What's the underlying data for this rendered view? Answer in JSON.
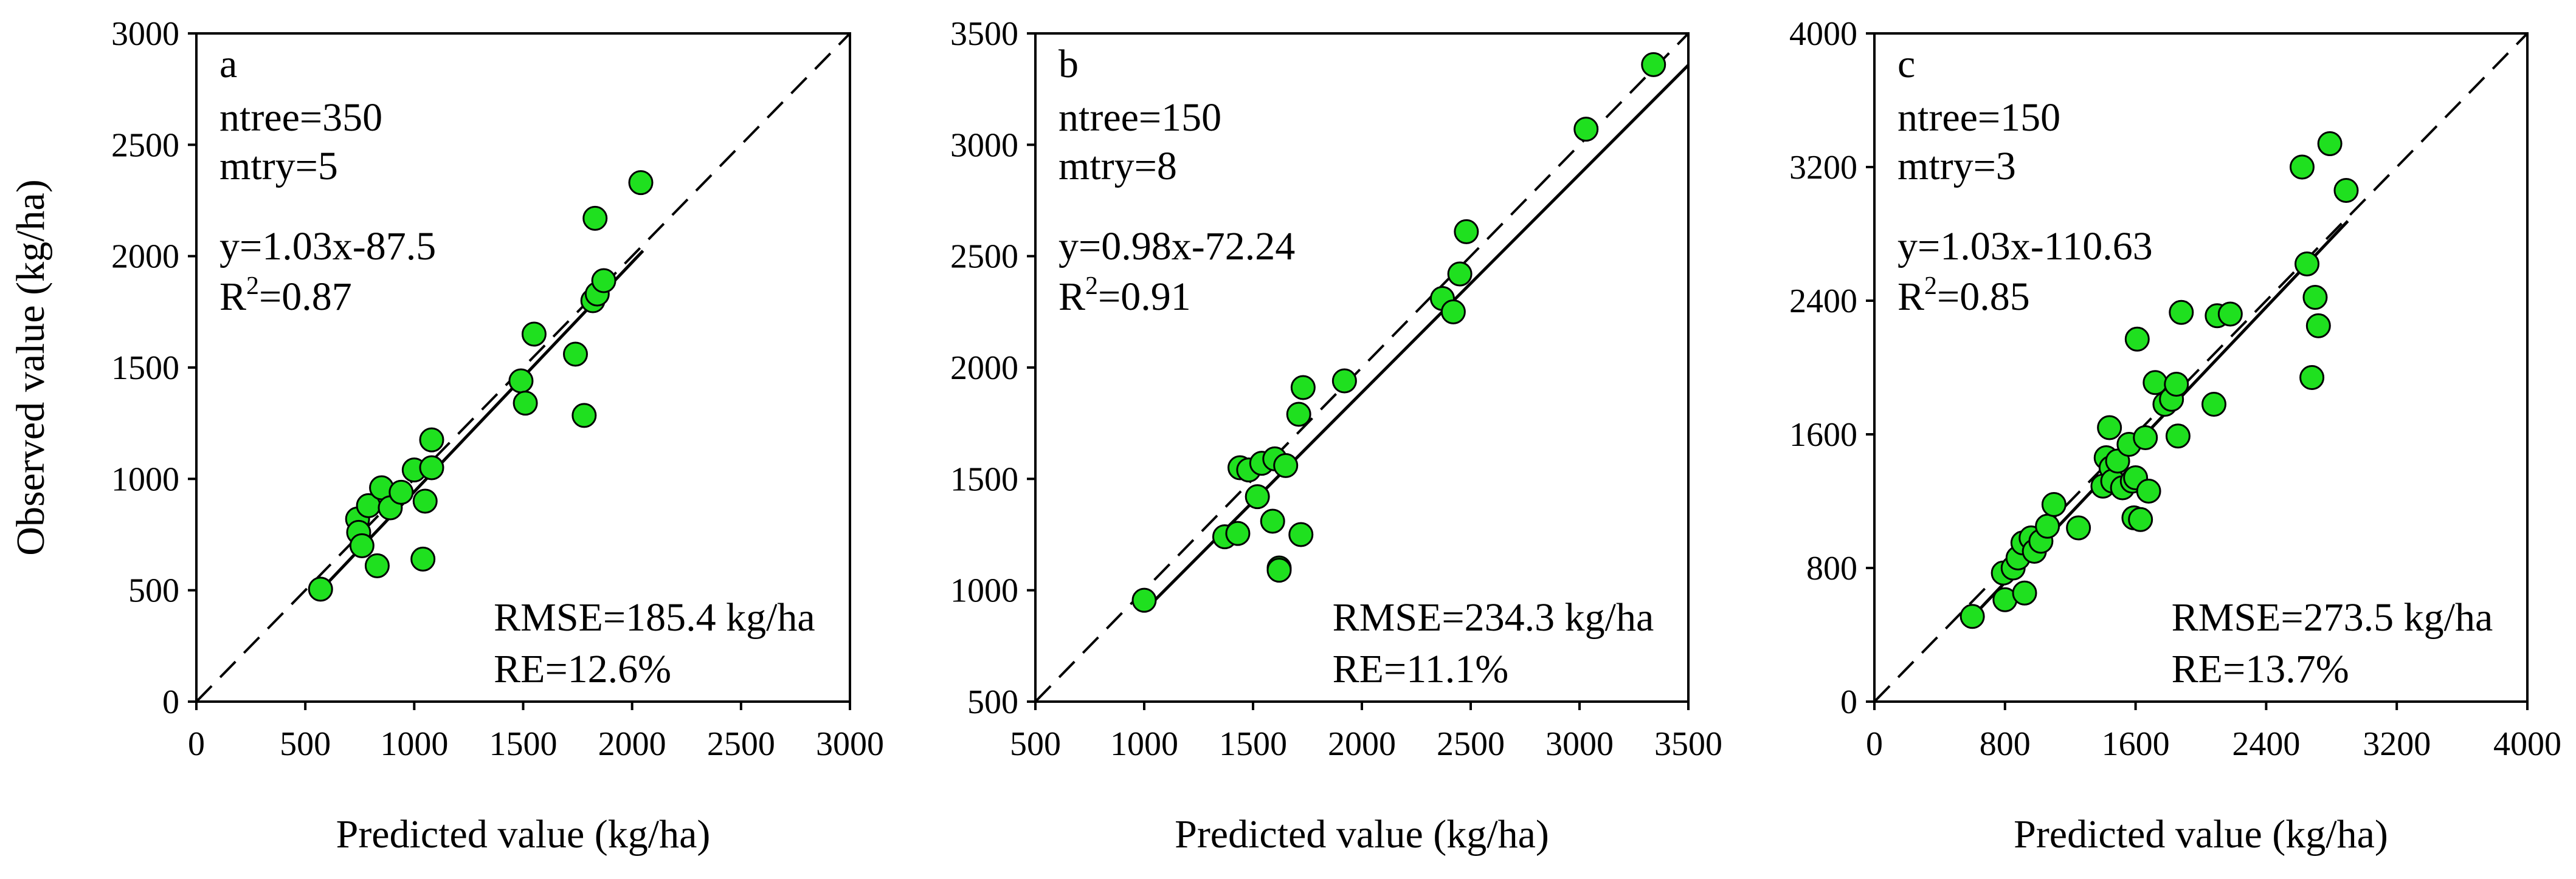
{
  "chart_data": [
    {
      "type": "scatter",
      "panel": "a",
      "params": [
        "ntree=350",
        "mtry=5"
      ],
      "equation": "y=1.03x-87.5",
      "r2_prefix": "R",
      "r2_sup": "2",
      "r2_value": "=0.87",
      "rmse": "RMSE=185.4 kg/ha",
      "re": "RE=12.6%",
      "slope": 1.03,
      "intercept": -87.5,
      "fit_range": [
        560,
        2050
      ],
      "xlabel": "Predicted value (kg/ha)",
      "ylabel": "Observed value (kg/ha)",
      "xlim": [
        0,
        3000
      ],
      "ylim": [
        0,
        3000
      ],
      "xticks": [
        0,
        500,
        1000,
        1500,
        2000,
        2500,
        3000
      ],
      "yticks": [
        0,
        500,
        1000,
        1500,
        2000,
        2500,
        3000
      ],
      "x": [
        570,
        740,
        745,
        760,
        790,
        830,
        850,
        890,
        940,
        1000,
        1040,
        1050,
        1080,
        1080,
        1490,
        1510,
        1550,
        1740,
        1780,
        1820,
        1830,
        1840,
        1870,
        2040
      ],
      "y": [
        505,
        820,
        760,
        700,
        880,
        610,
        960,
        870,
        940,
        1040,
        640,
        900,
        1050,
        1175,
        1440,
        1340,
        1650,
        1560,
        1285,
        1800,
        2170,
        1830,
        1890,
        2330
      ]
    },
    {
      "type": "scatter",
      "panel": "b",
      "params": [
        "ntree=150",
        "mtry=8"
      ],
      "equation": "y=0.98x-72.24",
      "r2_prefix": "R",
      "r2_sup": "2",
      "r2_value": "=0.91",
      "rmse": "RMSE=234.3 kg/ha",
      "re": "RE=11.1%",
      "slope": 0.98,
      "intercept": -72.24,
      "fit_range": [
        1000,
        3500
      ],
      "xlabel": "Predicted value (kg/ha)",
      "ylabel": "",
      "xlim": [
        500,
        3500
      ],
      "ylim": [
        500,
        3500
      ],
      "xticks": [
        500,
        1000,
        1500,
        2000,
        2500,
        3000,
        3500
      ],
      "yticks": [
        500,
        1000,
        1500,
        2000,
        2500,
        3000,
        3500
      ],
      "x": [
        1000,
        1370,
        1430,
        1440,
        1480,
        1520,
        1540,
        1590,
        1600,
        1620,
        1620,
        1650,
        1710,
        1720,
        1730,
        1920,
        2370,
        2420,
        2450,
        2480,
        3030,
        3340
      ],
      "y": [
        955,
        1240,
        1255,
        1550,
        1540,
        1420,
        1570,
        1310,
        1590,
        1100,
        1090,
        1560,
        1790,
        1250,
        1910,
        1940,
        2310,
        2250,
        2420,
        2610,
        3070,
        3360
      ]
    },
    {
      "type": "scatter",
      "panel": "c",
      "params": [
        "ntree=150",
        "mtry=3"
      ],
      "equation": "y=1.03x-110.63",
      "r2_prefix": "R",
      "r2_sup": "2",
      "r2_value": "=0.85",
      "rmse": "RMSE=273.5 kg/ha",
      "re": "RE=13.7%",
      "slope": 1.03,
      "intercept": -110.63,
      "fit_range": [
        600,
        2900
      ],
      "xlabel": "Predicted value (kg/ha)",
      "ylabel": "",
      "xlim": [
        0,
        4000
      ],
      "ylim": [
        0,
        4000
      ],
      "xticks": [
        0,
        800,
        1600,
        2400,
        3200,
        4000
      ],
      "yticks": [
        0,
        800,
        1600,
        2400,
        3200,
        4000
      ],
      "x": [
        600,
        790,
        800,
        850,
        880,
        910,
        920,
        960,
        980,
        1020,
        1060,
        1100,
        1250,
        1400,
        1420,
        1440,
        1450,
        1460,
        1490,
        1520,
        1560,
        1580,
        1590,
        1600,
        1610,
        1630,
        1660,
        1680,
        1720,
        1780,
        1820,
        1850,
        1860,
        1880,
        2080,
        2100,
        2180,
        2620,
        2650,
        2680,
        2700,
        2720,
        2790,
        2890
      ],
      "y": [
        510,
        770,
        610,
        800,
        860,
        950,
        650,
        980,
        900,
        960,
        1050,
        1180,
        1040,
        1290,
        1460,
        1640,
        1400,
        1320,
        1440,
        1280,
        1540,
        1320,
        1100,
        1340,
        2170,
        1090,
        1580,
        1260,
        1910,
        1780,
        1810,
        1900,
        1590,
        2330,
        1780,
        2310,
        2320,
        3200,
        2620,
        1940,
        2420,
        2250,
        3340,
        3060
      ]
    }
  ]
}
